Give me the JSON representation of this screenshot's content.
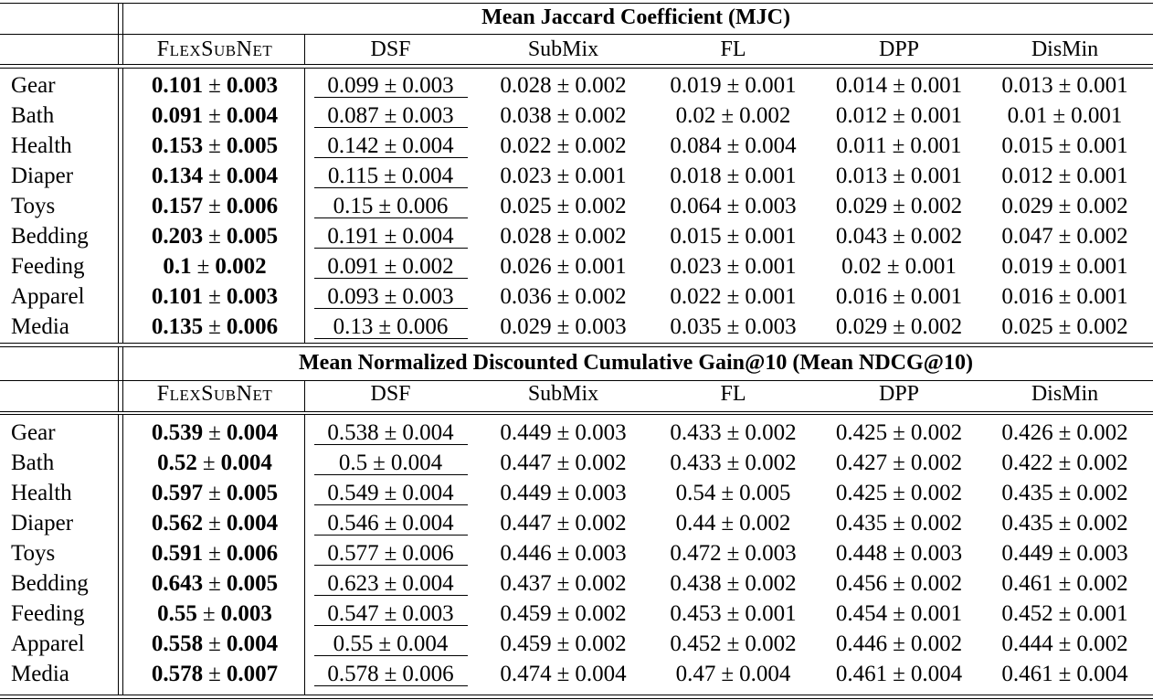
{
  "sections": [
    {
      "title": "Mean Jaccard Coefficient (MJC)",
      "columns": [
        "FLEXSUBNET",
        "DSF",
        "SubMix",
        "FL",
        "DPP",
        "DisMin"
      ],
      "rows": [
        {
          "label": "Gear",
          "cells": [
            [
              "0.101",
              "0.003"
            ],
            [
              "0.099",
              "0.003"
            ],
            [
              "0.028",
              "0.002"
            ],
            [
              "0.019",
              "0.001"
            ],
            [
              "0.014",
              "0.001"
            ],
            [
              "0.013",
              "0.001"
            ]
          ]
        },
        {
          "label": "Bath",
          "cells": [
            [
              "0.091",
              "0.004"
            ],
            [
              "0.087",
              "0.003"
            ],
            [
              "0.038",
              "0.002"
            ],
            [
              "0.02",
              "0.002"
            ],
            [
              "0.012",
              "0.001"
            ],
            [
              "0.01",
              "0.001"
            ]
          ]
        },
        {
          "label": "Health",
          "cells": [
            [
              "0.153",
              "0.005"
            ],
            [
              "0.142",
              "0.004"
            ],
            [
              "0.022",
              "0.002"
            ],
            [
              "0.084",
              "0.004"
            ],
            [
              "0.011",
              "0.001"
            ],
            [
              "0.015",
              "0.001"
            ]
          ]
        },
        {
          "label": "Diaper",
          "cells": [
            [
              "0.134",
              "0.004"
            ],
            [
              "0.115",
              "0.004"
            ],
            [
              "0.023",
              "0.001"
            ],
            [
              "0.018",
              "0.001"
            ],
            [
              "0.013",
              "0.001"
            ],
            [
              "0.012",
              "0.001"
            ]
          ]
        },
        {
          "label": "Toys",
          "cells": [
            [
              "0.157",
              "0.006"
            ],
            [
              "0.15",
              "0.006"
            ],
            [
              "0.025",
              "0.002"
            ],
            [
              "0.064",
              "0.003"
            ],
            [
              "0.029",
              "0.002"
            ],
            [
              "0.029",
              "0.002"
            ]
          ]
        },
        {
          "label": "Bedding",
          "cells": [
            [
              "0.203",
              "0.005"
            ],
            [
              "0.191",
              "0.004"
            ],
            [
              "0.028",
              "0.002"
            ],
            [
              "0.015",
              "0.001"
            ],
            [
              "0.043",
              "0.002"
            ],
            [
              "0.047",
              "0.002"
            ]
          ]
        },
        {
          "label": "Feeding",
          "cells": [
            [
              "0.1",
              "0.002"
            ],
            [
              "0.091",
              "0.002"
            ],
            [
              "0.026",
              "0.001"
            ],
            [
              "0.023",
              "0.001"
            ],
            [
              "0.02",
              "0.001"
            ],
            [
              "0.019",
              "0.001"
            ]
          ]
        },
        {
          "label": "Apparel",
          "cells": [
            [
              "0.101",
              "0.003"
            ],
            [
              "0.093",
              "0.003"
            ],
            [
              "0.036",
              "0.002"
            ],
            [
              "0.022",
              "0.001"
            ],
            [
              "0.016",
              "0.001"
            ],
            [
              "0.016",
              "0.001"
            ]
          ]
        },
        {
          "label": "Media",
          "cells": [
            [
              "0.135",
              "0.006"
            ],
            [
              "0.13",
              "0.006"
            ],
            [
              "0.029",
              "0.003"
            ],
            [
              "0.035",
              "0.003"
            ],
            [
              "0.029",
              "0.002"
            ],
            [
              "0.025",
              "0.002"
            ]
          ]
        }
      ]
    },
    {
      "title": "Mean Normalized Discounted Cumulative Gain@10 (Mean NDCG@10)",
      "columns": [
        "FLEXSUBNET",
        "DSF",
        "SubMix",
        "FL",
        "DPP",
        "DisMin"
      ],
      "rows": [
        {
          "label": "Gear",
          "cells": [
            [
              "0.539",
              "0.004"
            ],
            [
              "0.538",
              "0.004"
            ],
            [
              "0.449",
              "0.003"
            ],
            [
              "0.433",
              "0.002"
            ],
            [
              "0.425",
              "0.002"
            ],
            [
              "0.426",
              "0.002"
            ]
          ]
        },
        {
          "label": "Bath",
          "cells": [
            [
              "0.52",
              "0.004"
            ],
            [
              "0.5",
              "0.004"
            ],
            [
              "0.447",
              "0.002"
            ],
            [
              "0.433",
              "0.002"
            ],
            [
              "0.427",
              "0.002"
            ],
            [
              "0.422",
              "0.002"
            ]
          ]
        },
        {
          "label": "Health",
          "cells": [
            [
              "0.597",
              "0.005"
            ],
            [
              "0.549",
              "0.004"
            ],
            [
              "0.449",
              "0.003"
            ],
            [
              "0.54",
              "0.005"
            ],
            [
              "0.425",
              "0.002"
            ],
            [
              "0.435",
              "0.002"
            ]
          ]
        },
        {
          "label": "Diaper",
          "cells": [
            [
              "0.562",
              "0.004"
            ],
            [
              "0.546",
              "0.004"
            ],
            [
              "0.447",
              "0.002"
            ],
            [
              "0.44",
              "0.002"
            ],
            [
              "0.435",
              "0.002"
            ],
            [
              "0.435",
              "0.002"
            ]
          ]
        },
        {
          "label": "Toys",
          "cells": [
            [
              "0.591",
              "0.006"
            ],
            [
              "0.577",
              "0.006"
            ],
            [
              "0.446",
              "0.003"
            ],
            [
              "0.472",
              "0.003"
            ],
            [
              "0.448",
              "0.003"
            ],
            [
              "0.449",
              "0.003"
            ]
          ]
        },
        {
          "label": "Bedding",
          "cells": [
            [
              "0.643",
              "0.005"
            ],
            [
              "0.623",
              "0.004"
            ],
            [
              "0.437",
              "0.002"
            ],
            [
              "0.438",
              "0.002"
            ],
            [
              "0.456",
              "0.002"
            ],
            [
              "0.461",
              "0.002"
            ]
          ]
        },
        {
          "label": "Feeding",
          "cells": [
            [
              "0.55",
              "0.003"
            ],
            [
              "0.547",
              "0.003"
            ],
            [
              "0.459",
              "0.002"
            ],
            [
              "0.453",
              "0.001"
            ],
            [
              "0.454",
              "0.001"
            ],
            [
              "0.452",
              "0.001"
            ]
          ]
        },
        {
          "label": "Apparel",
          "cells": [
            [
              "0.558",
              "0.004"
            ],
            [
              "0.55",
              "0.004"
            ],
            [
              "0.459",
              "0.002"
            ],
            [
              "0.452",
              "0.002"
            ],
            [
              "0.446",
              "0.002"
            ],
            [
              "0.444",
              "0.002"
            ]
          ]
        },
        {
          "label": "Media",
          "cells": [
            [
              "0.578",
              "0.007"
            ],
            [
              "0.578",
              "0.006"
            ],
            [
              "0.474",
              "0.004"
            ],
            [
              "0.47",
              "0.004"
            ],
            [
              "0.461",
              "0.004"
            ],
            [
              "0.461",
              "0.004"
            ]
          ]
        }
      ]
    }
  ],
  "best_column": 0,
  "second_best_column": 1,
  "pm_symbol": "±"
}
